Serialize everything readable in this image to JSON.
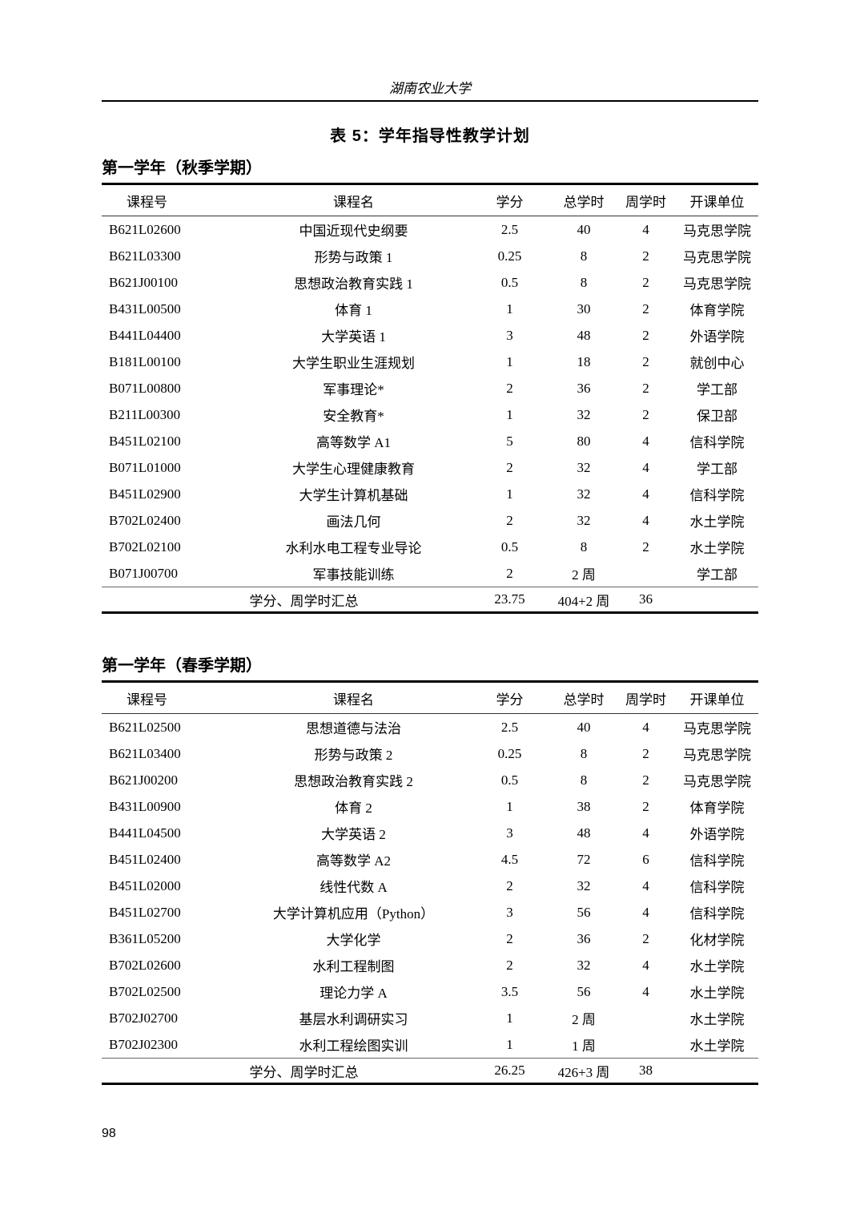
{
  "page": {
    "header": "湖南农业大学",
    "title": "表 5：学年指导性教学计划",
    "page_number": "98"
  },
  "tables": [
    {
      "section_heading": "第一学年（秋季学期）",
      "columns": [
        "课程号",
        "课程名",
        "学分",
        "总学时",
        "周学时",
        "开课单位"
      ],
      "rows": [
        [
          "B621L02600",
          "中国近现代史纲要",
          "2.5",
          "40",
          "4",
          "马克思学院"
        ],
        [
          "B621L03300",
          "形势与政策 1",
          "0.25",
          "8",
          "2",
          "马克思学院"
        ],
        [
          "B621J00100",
          "思想政治教育实践 1",
          "0.5",
          "8",
          "2",
          "马克思学院"
        ],
        [
          "B431L00500",
          "体育 1",
          "1",
          "30",
          "2",
          "体育学院"
        ],
        [
          "B441L04400",
          "大学英语 1",
          "3",
          "48",
          "2",
          "外语学院"
        ],
        [
          "B181L00100",
          "大学生职业生涯规划",
          "1",
          "18",
          "2",
          "就创中心"
        ],
        [
          "B071L00800",
          "军事理论*",
          "2",
          "36",
          "2",
          "学工部"
        ],
        [
          "B211L00300",
          "安全教育*",
          "1",
          "32",
          "2",
          "保卫部"
        ],
        [
          "B451L02100",
          "高等数学 A1",
          "5",
          "80",
          "4",
          "信科学院"
        ],
        [
          "B071L01000",
          "大学生心理健康教育",
          "2",
          "32",
          "4",
          "学工部"
        ],
        [
          "B451L02900",
          "大学生计算机基础",
          "1",
          "32",
          "4",
          "信科学院"
        ],
        [
          "B702L02400",
          "画法几何",
          "2",
          "32",
          "4",
          "水土学院"
        ],
        [
          "B702L02100",
          "水利水电工程专业导论",
          "0.5",
          "8",
          "2",
          "水土学院"
        ],
        [
          "B071J00700",
          "军事技能训练",
          "2",
          "2 周",
          "",
          "学工部"
        ]
      ],
      "summary": {
        "label": "学分、周学时汇总",
        "credits": "23.75",
        "total_hours": "404+2 周",
        "weekly_hours": "36",
        "department": ""
      }
    },
    {
      "section_heading": "第一学年（春季学期）",
      "columns": [
        "课程号",
        "课程名",
        "学分",
        "总学时",
        "周学时",
        "开课单位"
      ],
      "rows": [
        [
          "B621L02500",
          "思想道德与法治",
          "2.5",
          "40",
          "4",
          "马克思学院"
        ],
        [
          "B621L03400",
          "形势与政策 2",
          "0.25",
          "8",
          "2",
          "马克思学院"
        ],
        [
          "B621J00200",
          "思想政治教育实践 2",
          "0.5",
          "8",
          "2",
          "马克思学院"
        ],
        [
          "B431L00900",
          "体育 2",
          "1",
          "38",
          "2",
          "体育学院"
        ],
        [
          "B441L04500",
          "大学英语 2",
          "3",
          "48",
          "4",
          "外语学院"
        ],
        [
          "B451L02400",
          "高等数学 A2",
          "4.5",
          "72",
          "6",
          "信科学院"
        ],
        [
          "B451L02000",
          "线性代数 A",
          "2",
          "32",
          "4",
          "信科学院"
        ],
        [
          "B451L02700",
          "大学计算机应用（Python）",
          "3",
          "56",
          "4",
          "信科学院"
        ],
        [
          "B361L05200",
          "大学化学",
          "2",
          "36",
          "2",
          "化材学院"
        ],
        [
          "B702L02600",
          "水利工程制图",
          "2",
          "32",
          "4",
          "水土学院"
        ],
        [
          "B702L02500",
          "理论力学 A",
          "3.5",
          "56",
          "4",
          "水土学院"
        ],
        [
          "B702J02700",
          "基层水利调研实习",
          "1",
          "2 周",
          "",
          "水土学院"
        ],
        [
          "B702J02300",
          "水利工程绘图实训",
          "1",
          "1 周",
          "",
          "水土学院"
        ]
      ],
      "summary": {
        "label": "学分、周学时汇总",
        "credits": "26.25",
        "total_hours": "426+3 周",
        "weekly_hours": "38",
        "department": ""
      }
    }
  ]
}
